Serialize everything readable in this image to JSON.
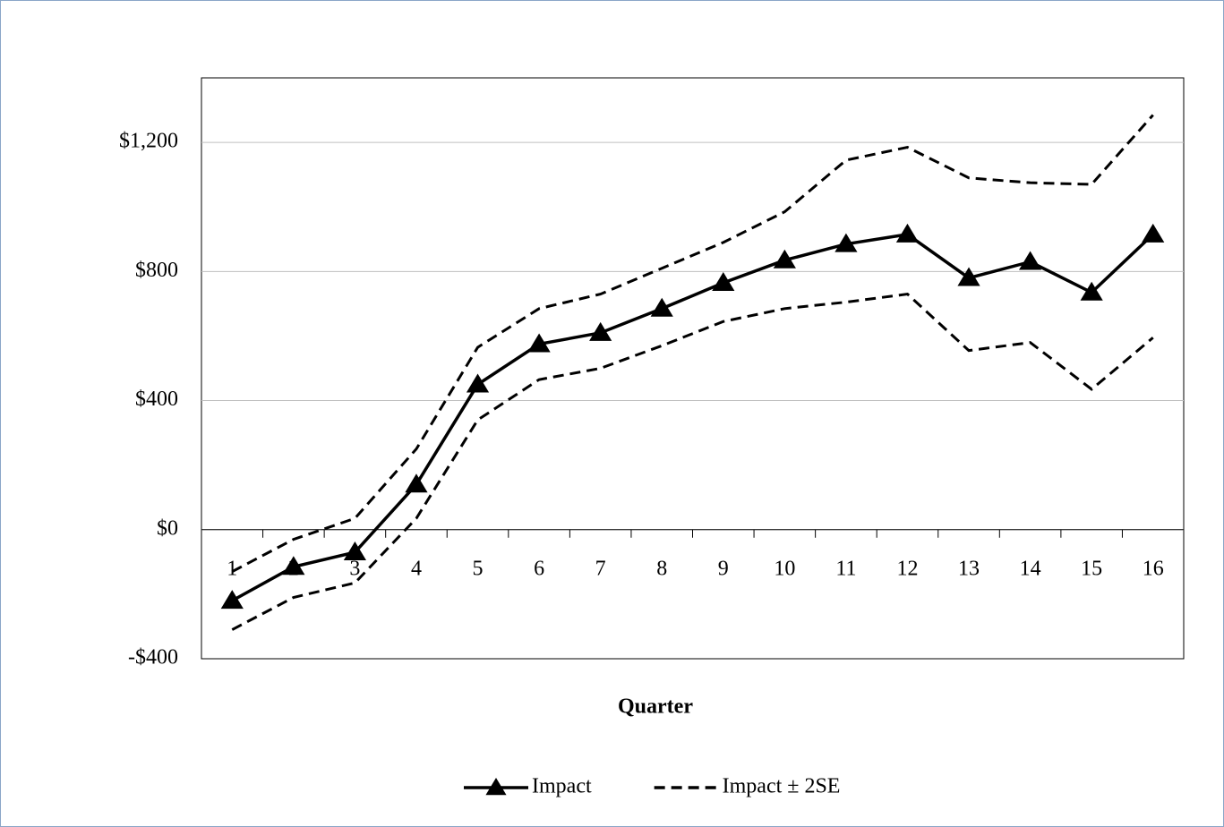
{
  "chart_data": {
    "type": "line",
    "x_label": "Quarter",
    "categories": [
      "1",
      "2",
      "3",
      "4",
      "5",
      "6",
      "7",
      "8",
      "9",
      "10",
      "11",
      "12",
      "13",
      "14",
      "15",
      "16"
    ],
    "series": [
      {
        "name": "Impact",
        "color": "#000000",
        "marker": "triangle",
        "values": [
          -220,
          -115,
          -70,
          140,
          450,
          575,
          610,
          685,
          765,
          835,
          885,
          915,
          780,
          830,
          735,
          915
        ]
      },
      {
        "name": "Impact ± 2SE",
        "color": "#000000",
        "dashed": true,
        "upper": [
          -130,
          -30,
          35,
          250,
          565,
          685,
          730,
          810,
          890,
          985,
          1145,
          1185,
          1090,
          1075,
          1070,
          1285
        ],
        "lower": [
          -310,
          -210,
          -165,
          35,
          340,
          465,
          500,
          570,
          645,
          685,
          705,
          730,
          555,
          580,
          435,
          595
        ]
      }
    ],
    "ylim": [
      -400,
      1400
    ],
    "yticks": [
      {
        "value": -400,
        "label": "-$400"
      },
      {
        "value": 0,
        "label": "$0"
      },
      {
        "value": 400,
        "label": "$400"
      },
      {
        "value": 800,
        "label": "$800"
      },
      {
        "value": 1200,
        "label": "$1,200"
      }
    ],
    "grid": true,
    "legend": "bottom"
  }
}
